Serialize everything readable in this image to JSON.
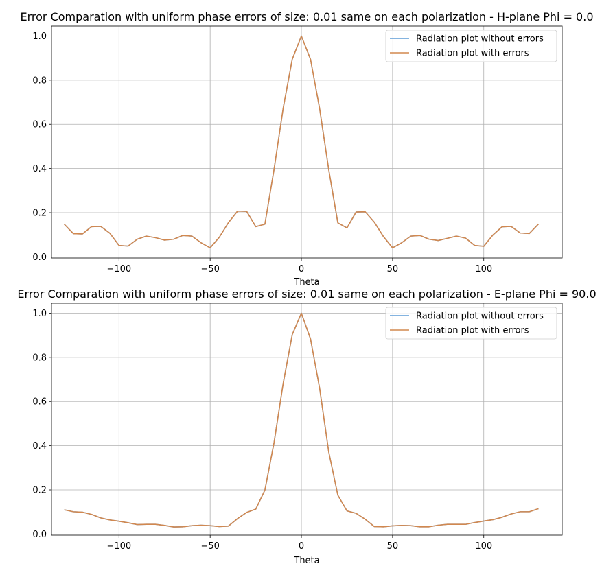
{
  "chart_data": [
    {
      "type": "line",
      "title": "Error Comparation with uniform phase errors of size: 0.01 same on each polarization - H-plane Phi = 0.0",
      "xlabel": "Theta",
      "ylabel": "",
      "xlim": [
        -137,
        143
      ],
      "ylim": [
        -0.005,
        1.045
      ],
      "xticks": [
        -100,
        -50,
        0,
        50,
        100
      ],
      "xtick_labels": [
        "−100",
        "−50",
        "0",
        "50",
        "100"
      ],
      "yticks": [
        0.0,
        0.2,
        0.4,
        0.6,
        0.8,
        1.0
      ],
      "ytick_labels": [
        "0.0",
        "0.2",
        "0.4",
        "0.6",
        "0.8",
        "1.0"
      ],
      "grid": true,
      "legend": "upper right",
      "x": [
        -130,
        -125,
        -120,
        -115,
        -110,
        -105,
        -100,
        -95,
        -90,
        -85,
        -80,
        -75,
        -70,
        -65,
        -60,
        -55,
        -50,
        -45,
        -40,
        -35,
        -30,
        -25,
        -20,
        -15,
        -10,
        -5,
        0,
        5,
        10,
        15,
        20,
        25,
        30,
        35,
        40,
        45,
        50,
        55,
        60,
        65,
        70,
        75,
        80,
        85,
        90,
        95,
        100,
        105,
        110,
        115,
        120,
        125,
        130
      ],
      "series": [
        {
          "name": "Radiation plot without errors",
          "color": "#5d9bd5",
          "values": [
            0.148,
            0.105,
            0.104,
            0.137,
            0.138,
            0.107,
            0.052,
            0.049,
            0.08,
            0.094,
            0.087,
            0.076,
            0.08,
            0.097,
            0.094,
            0.064,
            0.041,
            0.089,
            0.155,
            0.207,
            0.206,
            0.137,
            0.148,
            0.395,
            0.672,
            0.895,
            1.0,
            0.895,
            0.672,
            0.395,
            0.154,
            0.131,
            0.203,
            0.204,
            0.157,
            0.092,
            0.041,
            0.064,
            0.094,
            0.097,
            0.08,
            0.074,
            0.084,
            0.094,
            0.085,
            0.052,
            0.048,
            0.099,
            0.136,
            0.138,
            0.108,
            0.106,
            0.149
          ]
        },
        {
          "name": "Radiation plot with errors",
          "color": "#d2884f",
          "values": [
            0.148,
            0.105,
            0.104,
            0.137,
            0.138,
            0.107,
            0.052,
            0.049,
            0.08,
            0.094,
            0.087,
            0.076,
            0.08,
            0.097,
            0.094,
            0.064,
            0.041,
            0.089,
            0.155,
            0.207,
            0.206,
            0.137,
            0.148,
            0.395,
            0.672,
            0.895,
            1.0,
            0.895,
            0.672,
            0.395,
            0.154,
            0.131,
            0.203,
            0.204,
            0.157,
            0.092,
            0.041,
            0.064,
            0.094,
            0.097,
            0.08,
            0.074,
            0.084,
            0.094,
            0.085,
            0.052,
            0.048,
            0.099,
            0.136,
            0.138,
            0.108,
            0.106,
            0.149
          ]
        }
      ]
    },
    {
      "type": "line",
      "title": "Error Comparation with uniform phase errors of size: 0.01 same on each polarization - E-plane Phi = 90.0",
      "xlabel": "Theta",
      "ylabel": "",
      "xlim": [
        -137,
        143
      ],
      "ylim": [
        -0.005,
        1.045
      ],
      "xticks": [
        -100,
        -50,
        0,
        50,
        100
      ],
      "xtick_labels": [
        "−100",
        "−50",
        "0",
        "50",
        "100"
      ],
      "yticks": [
        0.0,
        0.2,
        0.4,
        0.6,
        0.8,
        1.0
      ],
      "ytick_labels": [
        "0.0",
        "0.2",
        "0.4",
        "0.6",
        "0.8",
        "1.0"
      ],
      "grid": true,
      "legend": "upper right",
      "x": [
        -130,
        -125,
        -120,
        -115,
        -110,
        -105,
        -100,
        -95,
        -90,
        -85,
        -80,
        -75,
        -70,
        -65,
        -60,
        -55,
        -50,
        -45,
        -40,
        -35,
        -30,
        -25,
        -20,
        -15,
        -10,
        -5,
        0,
        5,
        10,
        15,
        20,
        25,
        30,
        35,
        40,
        45,
        50,
        55,
        60,
        65,
        70,
        75,
        80,
        85,
        90,
        95,
        100,
        105,
        110,
        115,
        120,
        125,
        130
      ],
      "series": [
        {
          "name": "Radiation plot without errors",
          "color": "#5d9bd5",
          "values": [
            0.11,
            0.101,
            0.099,
            0.089,
            0.073,
            0.064,
            0.058,
            0.051,
            0.043,
            0.044,
            0.044,
            0.039,
            0.032,
            0.033,
            0.038,
            0.04,
            0.038,
            0.034,
            0.036,
            0.07,
            0.098,
            0.113,
            0.199,
            0.413,
            0.681,
            0.903,
            1.0,
            0.884,
            0.661,
            0.372,
            0.176,
            0.105,
            0.094,
            0.067,
            0.034,
            0.033,
            0.037,
            0.039,
            0.038,
            0.033,
            0.033,
            0.04,
            0.044,
            0.044,
            0.044,
            0.052,
            0.059,
            0.065,
            0.076,
            0.091,
            0.101,
            0.101,
            0.115
          ]
        },
        {
          "name": "Radiation plot with errors",
          "color": "#d2884f",
          "values": [
            0.11,
            0.101,
            0.099,
            0.089,
            0.073,
            0.064,
            0.058,
            0.051,
            0.043,
            0.044,
            0.044,
            0.039,
            0.032,
            0.033,
            0.038,
            0.04,
            0.038,
            0.034,
            0.036,
            0.07,
            0.098,
            0.113,
            0.199,
            0.413,
            0.681,
            0.903,
            1.0,
            0.884,
            0.661,
            0.372,
            0.176,
            0.105,
            0.094,
            0.067,
            0.034,
            0.033,
            0.037,
            0.039,
            0.038,
            0.033,
            0.033,
            0.04,
            0.044,
            0.044,
            0.044,
            0.052,
            0.059,
            0.065,
            0.076,
            0.091,
            0.101,
            0.101,
            0.115
          ]
        }
      ]
    }
  ]
}
